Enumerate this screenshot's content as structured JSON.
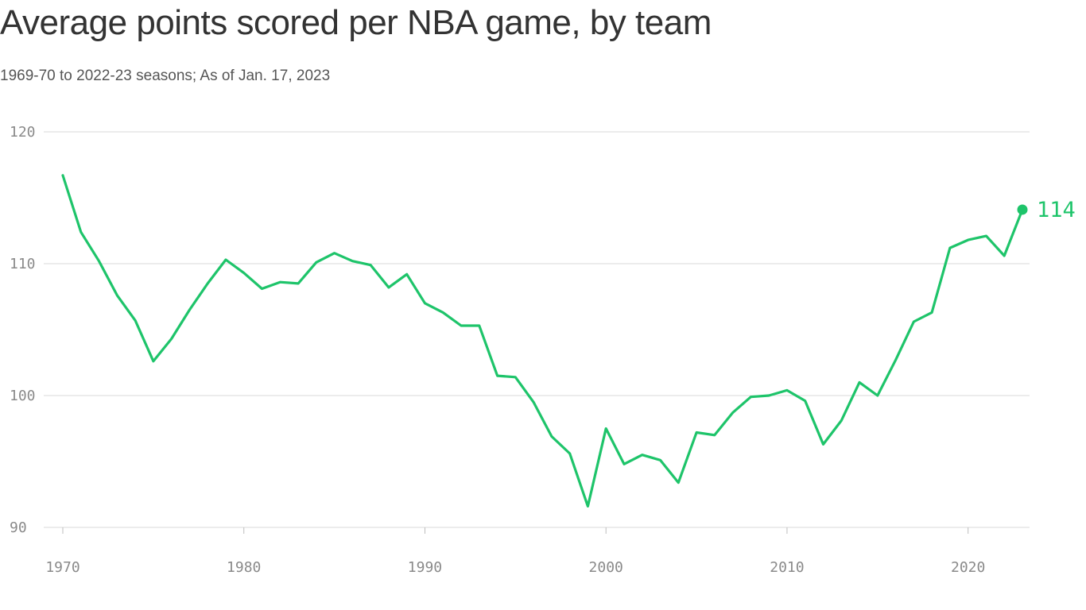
{
  "title": "Average points scored per NBA game, by team",
  "subtitle": "1969-70 to 2022-23 seasons; As of Jan. 17, 2023",
  "colors": {
    "line": "#1ec46a",
    "grid": "#d9d9d9",
    "tick": "#8a8a8a",
    "title": "#333333"
  },
  "chart_data": {
    "type": "line",
    "title": "Average points scored per NBA game, by team",
    "subtitle": "1969-70 to 2022-23 seasons; As of Jan. 17, 2023",
    "xlabel": "",
    "ylabel": "",
    "xlim": [
      1970,
      2023
    ],
    "ylim": [
      90,
      120
    ],
    "x_ticks": [
      1970,
      1980,
      1990,
      2000,
      2010,
      2020
    ],
    "y_ticks": [
      90,
      100,
      110,
      120
    ],
    "grid": "horizontal",
    "legend": "none",
    "end_label": "114",
    "series": [
      {
        "x": [
          1970,
          1971,
          1972,
          1973,
          1974,
          1975,
          1976,
          1977,
          1978,
          1979,
          1980,
          1981,
          1982,
          1983,
          1984,
          1985,
          1986,
          1987,
          1988,
          1989,
          1990,
          1991,
          1992,
          1993,
          1994,
          1995,
          1996,
          1997,
          1998,
          1999,
          2000,
          2001,
          2002,
          2003,
          2004,
          2005,
          2006,
          2007,
          2008,
          2009,
          2010,
          2011,
          2012,
          2013,
          2014,
          2015,
          2016,
          2017,
          2018,
          2019,
          2020,
          2021,
          2022,
          2023
        ],
        "values": [
          116.7,
          112.4,
          110.2,
          107.6,
          105.7,
          102.6,
          104.3,
          106.5,
          108.5,
          110.3,
          109.3,
          108.1,
          108.6,
          108.5,
          110.1,
          110.8,
          110.2,
          109.9,
          108.2,
          109.2,
          107.0,
          106.3,
          105.3,
          105.3,
          101.5,
          101.4,
          99.5,
          96.9,
          95.6,
          91.6,
          97.5,
          94.8,
          95.5,
          95.1,
          93.4,
          97.2,
          97.0,
          98.7,
          99.9,
          100.0,
          100.4,
          99.6,
          96.3,
          98.1,
          101.0,
          100.0,
          102.7,
          105.6,
          106.3,
          111.2,
          111.8,
          112.1,
          110.6,
          114.1
        ]
      }
    ]
  }
}
